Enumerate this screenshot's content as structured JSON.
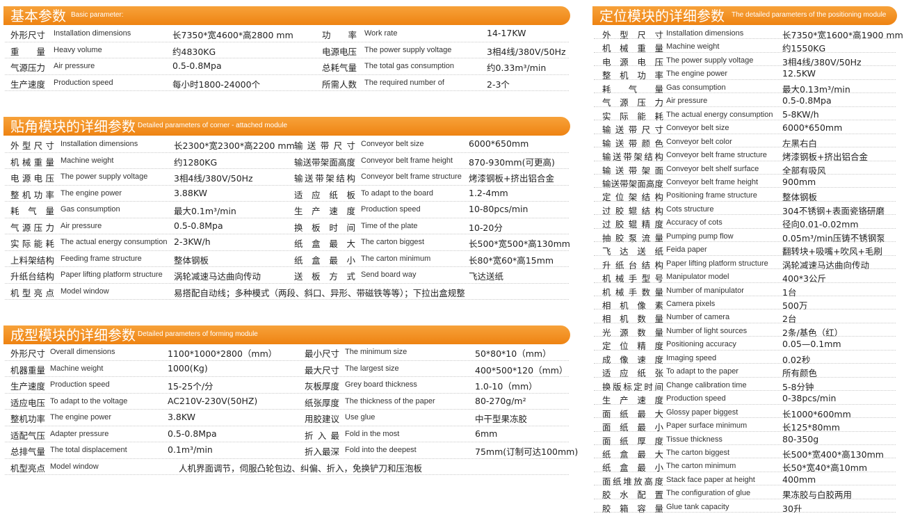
{
  "sections": [
    {
      "title_zh": "基本参数",
      "title_en": "Basic parameter:",
      "rows": [
        [
          {
            "label_zh": "外形尺寸",
            "label_en": "Installation dimensions",
            "value": "长7350*宽4600*高2800 mm"
          },
          {
            "label_zh": "功率",
            "label_en": "Work rate",
            "value": "14-17KW"
          }
        ],
        [
          {
            "label_zh": "重量",
            "label_en": "Heavy volume",
            "value": "约4830KG"
          },
          {
            "label_zh": "电源电压",
            "label_en": "The power supply voltage",
            "value": "3相4线/380V/50Hz"
          }
        ],
        [
          {
            "label_zh": "气源压力",
            "label_en": "Air pressure",
            "value": "0.5-0.8Mpa"
          },
          {
            "label_zh": "总耗气量",
            "label_en": "The total gas consumption",
            "value": "约0.33m³/min"
          }
        ],
        [
          {
            "label_zh": "生产速度",
            "label_en": "Production speed",
            "value": "每小时1800-24000个"
          },
          {
            "label_zh": "所需人数",
            "label_en": "The required number of",
            "value": "2-3个"
          }
        ]
      ]
    },
    {
      "title_zh": "贴角模块的详细参数",
      "title_en": "Detailed parameters of corner - attached module",
      "rows": [
        [
          {
            "label_zh": "外型尺寸",
            "label_en": "Installation dimensions",
            "value": "长2300*宽2300*高2200 mm"
          },
          {
            "label_zh": "输送带尺寸",
            "label_en": "Conveyor belt size",
            "value": "6000*650mm"
          }
        ],
        [
          {
            "label_zh": "机械重量",
            "label_en": "Machine weight",
            "value": "约1280KG"
          },
          {
            "label_zh": "输送带架面高度",
            "label_en": "Conveyor belt frame height",
            "value": "870-930mm(可更高)"
          }
        ],
        [
          {
            "label_zh": "电源电压",
            "label_en": "The power supply voltage",
            "value": "3相4线/380V/50Hz"
          },
          {
            "label_zh": "输送带架结构",
            "label_en": "Conveyor belt frame structure",
            "value": "烤漆钢板+挤出铝合金"
          }
        ],
        [
          {
            "label_zh": "整机功率",
            "label_en": "The engine power",
            "value": "3.88KW"
          },
          {
            "label_zh": "适应纸板",
            "label_en": "To adapt to the board",
            "value": "1.2-4mm"
          }
        ],
        [
          {
            "label_zh": "耗气量",
            "label_en": "Gas consumption",
            "value": "最大0.1m³/min"
          },
          {
            "label_zh": "生产速度",
            "label_en": "Production speed",
            "value": "10-80pcs/min"
          }
        ],
        [
          {
            "label_zh": "气源压力",
            "label_en": "Air pressure",
            "value": "0.5-0.8Mpa"
          },
          {
            "label_zh": "换板时间",
            "label_en": "Time of the plate",
            "value": "10-20分"
          }
        ],
        [
          {
            "label_zh": "实际能耗",
            "label_en": "The actual energy consumption",
            "value": "2-3KW/h"
          },
          {
            "label_zh": "纸盒最大",
            "label_en": "The carton biggest",
            "value": "长500*宽500*高130mm"
          }
        ],
        [
          {
            "label_zh": "上料架结构",
            "label_en": "Feeding frame structure",
            "value": "整体钢板"
          },
          {
            "label_zh": "纸盒最小",
            "label_en": "The carton minimum",
            "value": "长80*宽60*高15mm"
          }
        ],
        [
          {
            "label_zh": "升纸台结构",
            "label_en": "Paper lifting platform structure",
            "value": "涡轮减速马达曲向传动"
          },
          {
            "label_zh": "送板方式",
            "label_en": "Send board way",
            "value": "飞达送纸"
          }
        ],
        [
          {
            "label_zh": "机型亮点",
            "label_en": "Model window",
            "value": "易搭配自动线；多种模式（两段、斜口、异形、带磁铁等等）；下拉出盒规整"
          }
        ]
      ]
    },
    {
      "title_zh": "成型模块的详细参数",
      "title_en": "Detailed parameters of forming module",
      "rows": [
        [
          {
            "label_zh": "外形尺寸",
            "label_en": "Overall dimensions",
            "value": "1100*1000*2800（mm）"
          },
          {
            "label_zh": "最小尺寸",
            "label_en": "The minimum size",
            "value": "50*80*10（mm）"
          }
        ],
        [
          {
            "label_zh": "机器重量",
            "label_en": "Machine weight",
            "value": "1000(Kg)"
          },
          {
            "label_zh": "最大尺寸",
            "label_en": "The largest size",
            "value": "400*500*120（mm）"
          }
        ],
        [
          {
            "label_zh": "生产速度",
            "label_en": "Production speed",
            "value": "15-25个/分"
          },
          {
            "label_zh": "灰板厚度",
            "label_en": "Grey board thickness",
            "value": "1.0-10（mm）"
          }
        ],
        [
          {
            "label_zh": "适应电压",
            "label_en": "To adapt to the voltage",
            "value": "AC210V-230V(50HZ)"
          },
          {
            "label_zh": "纸张厚度",
            "label_en": "The thickness of the paper",
            "value": "80-270g/m²"
          }
        ],
        [
          {
            "label_zh": "整机功率",
            "label_en": "The engine power",
            "value": "3.8KW"
          },
          {
            "label_zh": "用胶建议",
            "label_en": "Use glue",
            "value": "中干型果冻胶"
          }
        ],
        [
          {
            "label_zh": "适配气压",
            "label_en": "Adapter pressure",
            "value": "0.5-0.8Mpa"
          },
          {
            "label_zh": "折入最",
            "label_en": "Fold in the most",
            "value": "6mm"
          }
        ],
        [
          {
            "label_zh": "总排气量",
            "label_en": "The total displacement",
            "value": "0.1m³/min"
          },
          {
            "label_zh": "折入最深",
            "label_en": "Fold into the deepest",
            "value": "75mm(订制可达100mm)"
          }
        ],
        [
          {
            "label_zh": "机型亮点",
            "label_en": "Model window",
            "value": "人机界面调节，伺服凸轮包边、纠偏、折入，免换铲刀和压泡板"
          }
        ]
      ]
    },
    {
      "title_zh": "定位模块的详细参数",
      "title_en": "The detailed parameters of the positioning module",
      "rows": [
        [
          {
            "label_zh": "外型尺寸",
            "label_en": "Installation dimensions",
            "value": "长7350*宽1600*高1900 mm"
          }
        ],
        [
          {
            "label_zh": "机械重量",
            "label_en": "Machine weight",
            "value": "约1550KG"
          }
        ],
        [
          {
            "label_zh": "电源电压",
            "label_en": "The power supply voltage",
            "value": "3相4线/380V/50Hz"
          }
        ],
        [
          {
            "label_zh": "整机功率",
            "label_en": "The engine power",
            "value": "12.5KW"
          }
        ],
        [
          {
            "label_zh": "耗气量",
            "label_en": "Gas consumption",
            "value": "最大0.13m³/min"
          }
        ],
        [
          {
            "label_zh": "气源压力",
            "label_en": "Air pressure",
            "value": "0.5-0.8Mpa"
          }
        ],
        [
          {
            "label_zh": "实际能耗",
            "label_en": "The actual energy consumption",
            "value": "5-8KW/h"
          }
        ],
        [
          {
            "label_zh": "输送带尺寸",
            "label_en": "Conveyor belt size",
            "value": "6000*650mm"
          }
        ],
        [
          {
            "label_zh": "输送带颜色",
            "label_en": "Conveyor belt color",
            "value": "左黑右白"
          }
        ],
        [
          {
            "label_zh": "输送带架结构",
            "label_en": "Conveyor belt frame structure",
            "value": "烤漆钢板+挤出铝合金"
          }
        ],
        [
          {
            "label_zh": "输送带架面",
            "label_en": "Conveyor belt shelf surface",
            "value": "全部有吸风"
          }
        ],
        [
          {
            "label_zh": "输送带架面高度",
            "label_en": "Conveyor belt frame height",
            "value": "900mm"
          }
        ],
        [
          {
            "label_zh": "定位架结构",
            "label_en": "Positioning frame structure",
            "value": "整体钢板"
          }
        ],
        [
          {
            "label_zh": "过胶辊结构",
            "label_en": "Cots structure",
            "value": "304不锈钢+表面瓷铬研磨"
          }
        ],
        [
          {
            "label_zh": "过胶辊精度",
            "label_en": "Accuracy of cots",
            "value": "径向0.01-0.02mm"
          }
        ],
        [
          {
            "label_zh": "抽胶泵流量",
            "label_en": "Pumping pump flow",
            "value": "0.05m³/min压铸不锈钢泵"
          }
        ],
        [
          {
            "label_zh": "飞达送纸",
            "label_en": "Feida paper",
            "value": "翻转块+吸嘴+吹风+毛刷"
          }
        ],
        [
          {
            "label_zh": "升纸台结构",
            "label_en": "Paper lifting platform structure",
            "value": "涡轮减速马达曲向传动"
          }
        ],
        [
          {
            "label_zh": "机械手型号",
            "label_en": "Manipulator model",
            "value": "400*3公斤"
          }
        ],
        [
          {
            "label_zh": "机械手数量",
            "label_en": "Number of manipulator",
            "value": "1台"
          }
        ],
        [
          {
            "label_zh": "相机像素",
            "label_en": "Camera pixels",
            "value": "500万"
          }
        ],
        [
          {
            "label_zh": "相机数量",
            "label_en": "Number of camera",
            "value": "2台"
          }
        ],
        [
          {
            "label_zh": "光源数量",
            "label_en": "Number of light sources",
            "value": "2条/基色（红）"
          }
        ],
        [
          {
            "label_zh": "定位精度",
            "label_en": "Positioning accuracy",
            "value": "0.05—0.1mm"
          }
        ],
        [
          {
            "label_zh": "成像速度",
            "label_en": "Imaging speed",
            "value": "0.02秒"
          }
        ],
        [
          {
            "label_zh": "适应纸张",
            "label_en": "To adapt to the paper",
            "value": "所有颜色"
          }
        ],
        [
          {
            "label_zh": "换版标定时间",
            "label_en": "Change calibration time",
            "value": "5-8分钟"
          }
        ],
        [
          {
            "label_zh": "生产速度",
            "label_en": "Production speed",
            "value": "0-38pcs/min"
          }
        ],
        [
          {
            "label_zh": "面纸最大",
            "label_en": "Glossy paper biggest",
            "value": "长1000*600mm"
          }
        ],
        [
          {
            "label_zh": "面纸最小",
            "label_en": "Paper surface minimum",
            "value": "长125*80mm"
          }
        ],
        [
          {
            "label_zh": "面纸厚度",
            "label_en": "Tissue thickness",
            "value": "80-350g"
          }
        ],
        [
          {
            "label_zh": "纸盒最大",
            "label_en": "The carton biggest",
            "value": "长500*宽400*高130mm"
          }
        ],
        [
          {
            "label_zh": "纸盒最小",
            "label_en": "The carton minimum",
            "value": "长50*宽40*高10mm"
          }
        ],
        [
          {
            "label_zh": "面纸堆放高度",
            "label_en": "Stack face paper at height",
            "value": "400mm"
          }
        ],
        [
          {
            "label_zh": "胶水配置",
            "label_en": "The configuration of glue",
            "value": "果冻胶与白胶两用"
          }
        ],
        [
          {
            "label_zh": "胶箱容量",
            "label_en": "Glue tank capacity",
            "value": "30升"
          }
        ]
      ]
    }
  ]
}
